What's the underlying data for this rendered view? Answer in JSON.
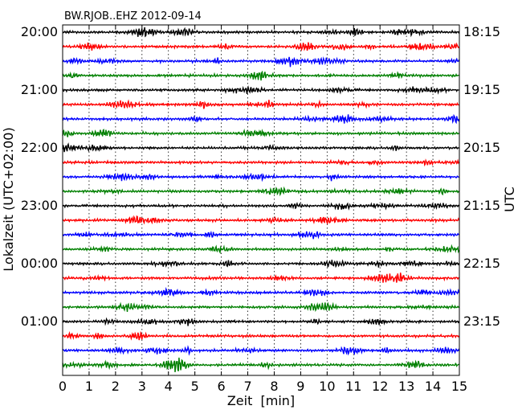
{
  "chart_data": {
    "type": "line",
    "title": "BW.RJOB..EHZ 2012-09-14",
    "xlabel": "Zeit  [min]",
    "ylabel_left": "Lokalzeit (UTC+02:00)",
    "ylabel_right": "UTC",
    "xlim": [
      0,
      15
    ],
    "x_ticks": [
      "0",
      "1",
      "2",
      "3",
      "4",
      "5",
      "6",
      "7",
      "8",
      "9",
      "10",
      "11",
      "12",
      "13",
      "14",
      "15"
    ],
    "vertical_grid": "dotted",
    "track_count": 24,
    "track_colors": [
      "#000000",
      "#ff0000",
      "#0000ff",
      "#008000"
    ],
    "left_labels": [
      {
        "track": 0,
        "text": "20:00"
      },
      {
        "track": 4,
        "text": "21:00"
      },
      {
        "track": 8,
        "text": "22:00"
      },
      {
        "track": 12,
        "text": "23:00"
      },
      {
        "track": 16,
        "text": "00:00"
      },
      {
        "track": 20,
        "text": "01:00"
      }
    ],
    "right_labels": [
      {
        "track": 0,
        "text": "18:15"
      },
      {
        "track": 4,
        "text": "19:15"
      },
      {
        "track": 8,
        "text": "20:15"
      },
      {
        "track": 12,
        "text": "21:15"
      },
      {
        "track": 16,
        "text": "22:15"
      },
      {
        "track": 20,
        "text": "23:15"
      }
    ]
  }
}
